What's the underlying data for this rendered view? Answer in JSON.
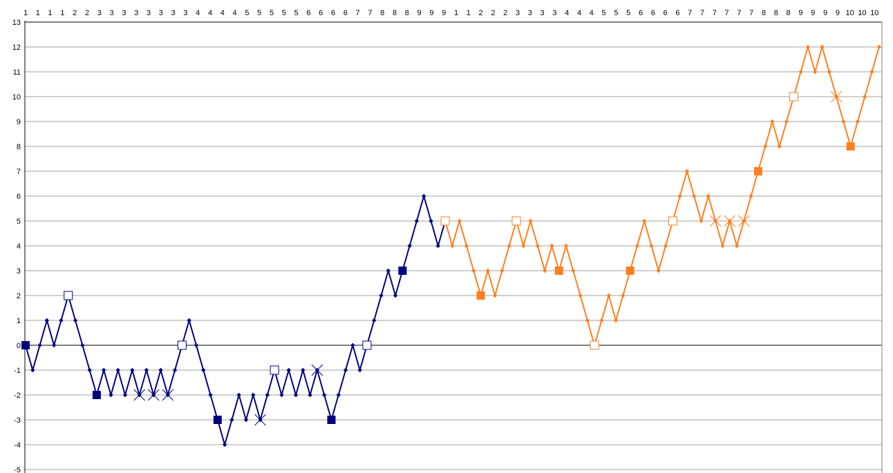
{
  "chart_data": {
    "type": "line",
    "title": "",
    "xlabel": "",
    "ylabel": "",
    "ylim": [
      -5,
      13
    ],
    "ytick_step": 1,
    "grid": true,
    "legend": "none",
    "top_tick_labels": [
      "1",
      "1",
      "1",
      "1",
      "2",
      "2",
      "3",
      "3",
      "3",
      "3",
      "3",
      "3",
      "3",
      "3",
      "4",
      "4",
      "4",
      "4",
      "5",
      "5",
      "5",
      "5",
      "5",
      "6",
      "6",
      "6",
      "6",
      "7",
      "7",
      "8",
      "8",
      "8",
      "9",
      "9",
      "9",
      "1",
      "1",
      "2",
      "2",
      "2",
      "3",
      "3",
      "3",
      "3",
      "4",
      "4",
      "4",
      "5",
      "5",
      "5",
      "6",
      "6",
      "6",
      "6",
      "7",
      "7",
      "7",
      "7",
      "7",
      "7",
      "8",
      "8",
      "8",
      "9",
      "9",
      "9",
      "9",
      "10",
      "10",
      "10"
    ],
    "series": [
      {
        "color": "#000080",
        "marker_color": "#000080",
        "values": [
          0,
          -1,
          0,
          1,
          0,
          1,
          2,
          1,
          0,
          -1,
          -2,
          -1,
          -2,
          -1,
          -2,
          -1,
          -2,
          -1,
          -2,
          -1,
          -2,
          -1,
          0,
          1,
          0,
          -1,
          -2,
          -3,
          -4,
          -3,
          -2,
          -3,
          -2,
          -3,
          -2,
          -1,
          -2,
          -1,
          -2,
          -1,
          -2,
          -1,
          -2,
          -3,
          -2,
          -1,
          0,
          -1,
          0,
          1,
          2,
          3,
          2,
          3,
          4,
          5,
          6,
          5,
          4,
          5
        ]
      },
      {
        "color": "#FF7F1E",
        "marker_color": "#FF7F1E",
        "values": [
          5,
          4,
          5,
          4,
          3,
          2,
          3,
          2,
          3,
          4,
          5,
          4,
          5,
          4,
          3,
          4,
          3,
          4,
          3,
          2,
          1,
          0,
          1,
          2,
          1,
          2,
          3,
          4,
          5,
          4,
          3,
          4,
          5,
          6,
          7,
          6,
          5,
          6,
          5,
          4,
          5,
          4,
          5,
          6,
          7,
          8,
          9,
          8,
          9,
          10,
          11,
          12,
          11,
          12,
          11,
          10,
          9,
          8,
          9,
          10,
          11,
          12
        ]
      }
    ],
    "special_markers": [
      {
        "series": 0,
        "index": 0,
        "value": 0,
        "kind": "filled-square"
      },
      {
        "series": 0,
        "index": 6,
        "value": 2,
        "kind": "open-square"
      },
      {
        "series": 0,
        "index": 10,
        "value": -2,
        "kind": "filled-square"
      },
      {
        "series": 0,
        "index": 16,
        "value": -2,
        "kind": "x"
      },
      {
        "series": 0,
        "index": 18,
        "value": -2,
        "kind": "x"
      },
      {
        "series": 0,
        "index": 20,
        "value": -2,
        "kind": "x"
      },
      {
        "series": 0,
        "index": 22,
        "value": 0,
        "kind": "open-square"
      },
      {
        "series": 0,
        "index": 27,
        "value": -3,
        "kind": "filled-square"
      },
      {
        "series": 0,
        "index": 33,
        "value": -3,
        "kind": "x"
      },
      {
        "series": 0,
        "index": 35,
        "value": -1,
        "kind": "open-square"
      },
      {
        "series": 0,
        "index": 41,
        "value": -1,
        "kind": "x"
      },
      {
        "series": 0,
        "index": 43,
        "value": -3,
        "kind": "filled-square"
      },
      {
        "series": 0,
        "index": 48,
        "value": 0,
        "kind": "open-square"
      },
      {
        "series": 0,
        "index": 53,
        "value": 3,
        "kind": "filled-square"
      },
      {
        "series": 1,
        "index": 0,
        "value": 5,
        "kind": "open-square"
      },
      {
        "series": 1,
        "index": 5,
        "value": 2,
        "kind": "filled-square"
      },
      {
        "series": 1,
        "index": 10,
        "value": 5,
        "kind": "open-square"
      },
      {
        "series": 1,
        "index": 16,
        "value": 3,
        "kind": "filled-square"
      },
      {
        "series": 1,
        "index": 21,
        "value": 0,
        "kind": "open-square"
      },
      {
        "series": 1,
        "index": 26,
        "value": 3,
        "kind": "filled-square"
      },
      {
        "series": 1,
        "index": 32,
        "value": 5,
        "kind": "open-square"
      },
      {
        "series": 1,
        "index": 38,
        "value": 5,
        "kind": "x"
      },
      {
        "series": 1,
        "index": 40,
        "value": 5,
        "kind": "x"
      },
      {
        "series": 1,
        "index": 42,
        "value": 5,
        "kind": "x"
      },
      {
        "series": 1,
        "index": 44,
        "value": 7,
        "kind": "filled-square"
      },
      {
        "series": 1,
        "index": 49,
        "value": 10,
        "kind": "open-square"
      },
      {
        "series": 1,
        "index": 55,
        "value": 10,
        "kind": "x"
      },
      {
        "series": 1,
        "index": 57,
        "value": 8,
        "kind": "filled-square"
      }
    ]
  }
}
